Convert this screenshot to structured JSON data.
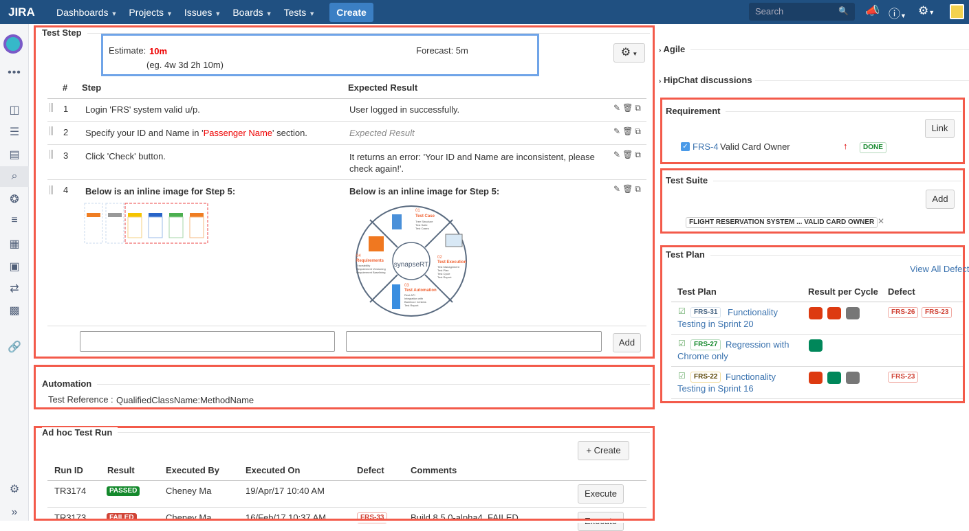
{
  "nav": {
    "logo": "JIRA",
    "items": [
      "Dashboards",
      "Projects",
      "Issues",
      "Boards",
      "Tests"
    ],
    "create": "Create",
    "search_placeholder": "Search"
  },
  "test_step": {
    "title": "Test Step",
    "estimate_label": "Estimate:",
    "estimate_value": "10m",
    "estimate_hint": "(eg. 4w 3d 2h 10m)",
    "forecast": "Forecast: 5m",
    "headers": {
      "num": "#",
      "step": "Step",
      "expected": "Expected Result"
    },
    "rows": [
      {
        "num": "1",
        "step": "Login 'FRS' system valid u/p.",
        "expected": "User logged in successfully."
      },
      {
        "num": "2",
        "step_pre": "Specify your ID and Name in '",
        "step_hl": "Passenger Name",
        "step_post": "' section.",
        "expected_placeholder": "Expected Result"
      },
      {
        "num": "3",
        "step": "Click 'Check' button.",
        "expected": "It returns an error: 'Your ID and Name are inconsistent, please check again!'."
      },
      {
        "num": "4",
        "step": "Below is an inline image for Step 5:",
        "expected": "Below is an inline image for Step 5:"
      }
    ],
    "add": "Add",
    "diagram": {
      "center": "synapseRT",
      "q1_num": "01",
      "q1": "Test Case",
      "q1_items": [
        "Tree Structure",
        "Test Suite",
        "Test Cases"
      ],
      "q2_num": "02",
      "q2": "Test Execution",
      "q2_items": [
        "Test Management",
        "Test Plan",
        "Test Cycle",
        "Test Report"
      ],
      "q3_num": "03",
      "q3": "Test Automation",
      "q3_items": [
        "Rest API",
        "Integration with",
        "Bamboo / Jenkins",
        "Test Report"
      ],
      "q4_num": "04",
      "q4": "Requirements",
      "q4_items": [
        "Traceability",
        "Requirement Versioning",
        "Requirement Baselining"
      ]
    }
  },
  "automation": {
    "title": "Automation",
    "label": "Test Reference :",
    "value": "QualifiedClassName:MethodName"
  },
  "adhoc": {
    "title": "Ad hoc Test Run",
    "create": "+ Create",
    "headers": [
      "Run ID",
      "Result",
      "Executed By",
      "Executed On",
      "Defect",
      "Comments"
    ],
    "rows": [
      {
        "id": "TR3174",
        "result": "PASSED",
        "by": "Cheney Ma",
        "on": "19/Apr/17 10:40 AM",
        "defect": "",
        "comment": "",
        "action": "Execute"
      },
      {
        "id": "TR3173",
        "result": "FAILED",
        "by": "Cheney Ma",
        "on": "16/Feb/17 10:37 AM",
        "defect": "FRS-33",
        "comment": "Build 8.5.0-alpha4, FAILED",
        "action": "Execute"
      }
    ]
  },
  "right": {
    "agile": "Agile",
    "hipchat": "HipChat discussions",
    "requirement": {
      "title": "Requirement",
      "link": "Link",
      "key": "FRS-4",
      "summary": "Valid Card Owner",
      "status": "DONE"
    },
    "suite": {
      "title": "Test Suite",
      "add": "Add",
      "tag": "FLIGHT RESERVATION SYSTEM ... VALID CARD OWNER"
    },
    "plan": {
      "title": "Test Plan",
      "view_all": "View All Defects",
      "headers": [
        "Test Plan",
        "Result per Cycle",
        "Defect"
      ],
      "rows": [
        {
          "key": "FRS-31",
          "title_1": "Functionality",
          "title_2": "Testing in Sprint 20",
          "cycles": [
            "failed",
            "failed",
            "not-run"
          ],
          "defects": [
            "FRS-26",
            "FRS-23"
          ]
        },
        {
          "key": "FRS-27",
          "title_1": "Regression with",
          "title_2": "Chrome only",
          "cycles": [
            "passed"
          ],
          "defects": []
        },
        {
          "key": "FRS-22",
          "title_1": "Functionality",
          "title_2": "Testing in Sprint 16",
          "cycles": [
            "failed",
            "passed",
            "not-run"
          ],
          "defects": [
            "FRS-23"
          ]
        }
      ]
    }
  },
  "colors": {
    "nav": "#205081",
    "passed": "#14892c",
    "failed": "#d04437",
    "not_run": "#707070",
    "highlight_box": "#f35a4a",
    "estimate_box": "#6fa4e8"
  }
}
